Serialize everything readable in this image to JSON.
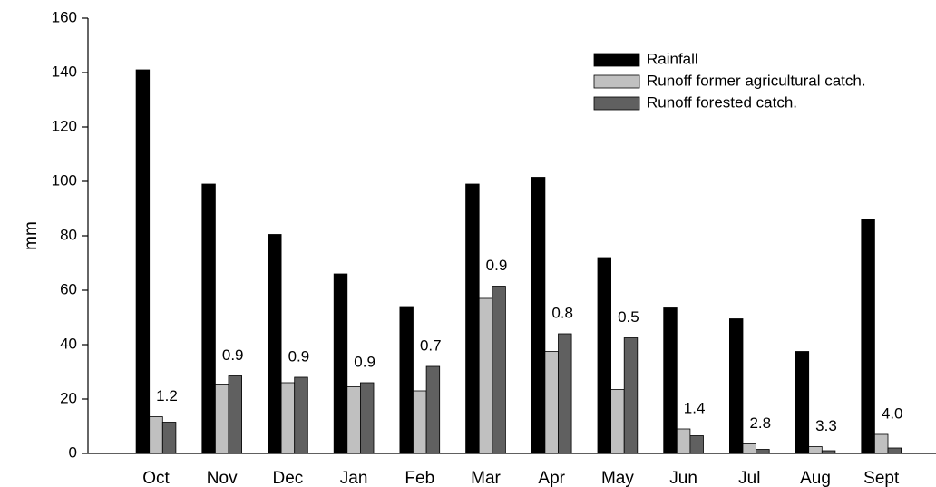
{
  "chart_data": {
    "type": "bar",
    "y_label": "mm",
    "categories": [
      "Oct",
      "Nov",
      "Dec",
      "Jan",
      "Feb",
      "Mar",
      "Apr",
      "May",
      "Jun",
      "Jul",
      "Aug",
      "Sept"
    ],
    "series": [
      {
        "name": "Rainfall",
        "color": "#000000",
        "values": [
          141,
          99,
          80.5,
          66,
          54,
          99,
          101.5,
          72,
          53.5,
          49.5,
          37.5,
          86
        ]
      },
      {
        "name": "Runoff former agricultural catch.",
        "color": "#c0c0c0",
        "values": [
          13.5,
          25.5,
          26,
          24.5,
          23,
          57,
          37.5,
          23.5,
          9,
          3.5,
          2.5,
          7
        ]
      },
      {
        "name": "Runoff forested catch.",
        "color": "#606060",
        "values": [
          11.5,
          28.5,
          28,
          26,
          32,
          61.5,
          44,
          42.5,
          6.5,
          1.5,
          1,
          2
        ]
      }
    ],
    "annotations": [
      "1.2",
      "0.9",
      "0.9",
      "0.9",
      "0.7",
      "0.9",
      "0.8",
      "0.5",
      "1.4",
      "2.8",
      "3.3",
      "4.0"
    ],
    "ylim": [
      0,
      160
    ],
    "yticks": [
      0,
      20,
      40,
      60,
      80,
      100,
      120,
      140,
      160
    ],
    "legend": "top-right"
  }
}
